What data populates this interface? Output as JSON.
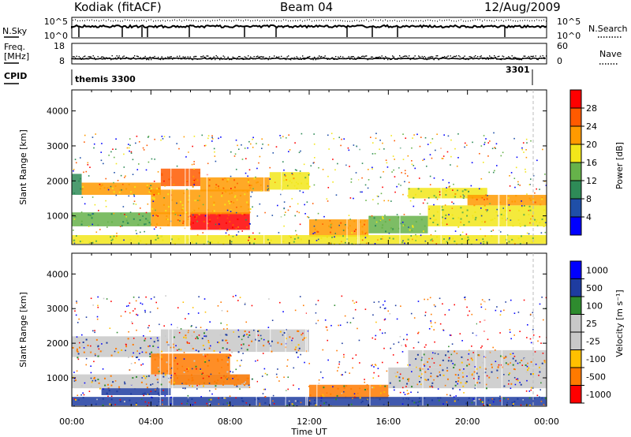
{
  "header": {
    "station": "Kodiak (fitACF)",
    "beam": "Beam 04",
    "date": "12/Aug/2009"
  },
  "strip_labels": {
    "nsky": "N.Sky",
    "nsky_ticks": [
      "10^5",
      "10^0"
    ],
    "nsearch": "N.Search",
    "nsearch_ticks": [
      "10^5",
      "10^0"
    ],
    "freq": "Freq.",
    "freq_unit": "[MHz]",
    "freq_ticks": [
      "18",
      "8"
    ],
    "nave": "Nave",
    "nave_ticks": [
      "60",
      "0"
    ],
    "cpid": "CPID",
    "cpid_left": "themis 3300",
    "cpid_right": "3301"
  },
  "x_axis": {
    "label": "Time UT",
    "ticks": [
      "00:00",
      "04:00",
      "08:00",
      "12:00",
      "16:00",
      "20:00",
      "00:00"
    ]
  },
  "colors": {
    "power": [
      "#0000ff",
      "#1f4fa8",
      "#2e8b57",
      "#66b24a",
      "#f2e61a",
      "#ff9a00",
      "#ff5a00",
      "#ff0000"
    ],
    "velocity": [
      "#ff0000",
      "#ff7a00",
      "#ffc000",
      "#c8c8c8",
      "#c8c8c8",
      "#2e8b2e",
      "#1e3ca0",
      "#0000ff"
    ],
    "ground_scatter": "#c0c0c0"
  },
  "chart_data": [
    {
      "type": "heatmap",
      "title": "",
      "xlabel": "",
      "ylabel": "Slant Range [km]",
      "xlim_hours": [
        0,
        24
      ],
      "ylim_km": [
        180,
        4600
      ],
      "y_ticks": [
        "1000",
        "2000",
        "3000",
        "4000"
      ],
      "colorbar": {
        "label": "Power [dB]",
        "ticks": [
          "4",
          "8",
          "12",
          "16",
          "20",
          "24",
          "28"
        ],
        "range": [
          0,
          30
        ]
      },
      "echo_bands": [
        {
          "t_start": 0.0,
          "t_end": 0.5,
          "r_low": 1600,
          "r_high": 2200,
          "value": 10
        },
        {
          "t_start": 0.5,
          "t_end": 4.5,
          "r_low": 1600,
          "r_high": 1950,
          "value": 20
        },
        {
          "t_start": 4.5,
          "t_end": 6.5,
          "r_low": 1850,
          "r_high": 2350,
          "value": 24
        },
        {
          "t_start": 6.5,
          "t_end": 10.0,
          "r_low": 1700,
          "r_high": 2100,
          "value": 22
        },
        {
          "t_start": 10.0,
          "t_end": 12.0,
          "r_low": 1750,
          "r_high": 2250,
          "value": 18
        },
        {
          "t_start": 0.0,
          "t_end": 4.0,
          "r_low": 700,
          "r_high": 1100,
          "value": 12
        },
        {
          "t_start": 4.0,
          "t_end": 6.0,
          "r_low": 700,
          "r_high": 1100,
          "value": 22
        },
        {
          "t_start": 6.0,
          "t_end": 9.0,
          "r_low": 600,
          "r_high": 1100,
          "value": 28
        },
        {
          "t_start": 4.0,
          "t_end": 9.0,
          "r_low": 1050,
          "r_high": 1750,
          "value": 20
        },
        {
          "t_start": 12.0,
          "t_end": 15.0,
          "r_low": 400,
          "r_high": 900,
          "value": 22
        },
        {
          "t_start": 15.0,
          "t_end": 18.0,
          "r_low": 500,
          "r_high": 1000,
          "value": 14
        },
        {
          "t_start": 17.0,
          "t_end": 21.0,
          "r_low": 1500,
          "r_high": 1800,
          "value": 18
        },
        {
          "t_start": 18.0,
          "t_end": 24.0,
          "r_low": 700,
          "r_high": 1300,
          "value": 16
        },
        {
          "t_start": 20.0,
          "t_end": 24.0,
          "r_low": 1300,
          "r_high": 1600,
          "value": 22
        },
        {
          "t_start": 0.0,
          "t_end": 24.0,
          "r_low": 200,
          "r_high": 450,
          "value": 16
        }
      ]
    },
    {
      "type": "heatmap",
      "title": "",
      "xlabel": "Time UT",
      "ylabel": "Slant Range [km]",
      "xlim_hours": [
        0,
        24
      ],
      "ylim_km": [
        180,
        4600
      ],
      "y_ticks": [
        "1000",
        "2000",
        "3000",
        "4000"
      ],
      "colorbar": {
        "label": "Velocity [m s⁻¹]",
        "ticks": [
          "1000",
          "500",
          "100",
          "25",
          "-25",
          "-100",
          "-500",
          "-1000"
        ],
        "range": [
          -1000,
          1000
        ]
      },
      "echo_bands": [
        {
          "t_start": 0.0,
          "t_end": 4.5,
          "r_low": 1600,
          "r_high": 2200,
          "value": 0
        },
        {
          "t_start": 4.5,
          "t_end": 12.0,
          "r_low": 1750,
          "r_high": 2400,
          "value": 0
        },
        {
          "t_start": 0.0,
          "t_end": 9.0,
          "r_low": 700,
          "r_high": 1100,
          "value": 0
        },
        {
          "t_start": 1.5,
          "t_end": 5.0,
          "r_low": 500,
          "r_high": 700,
          "value": 200
        },
        {
          "t_start": 5.0,
          "t_end": 9.0,
          "r_low": 800,
          "r_high": 1100,
          "value": -200
        },
        {
          "t_start": 4.0,
          "t_end": 8.0,
          "r_low": 1100,
          "r_high": 1700,
          "value": -100
        },
        {
          "t_start": 12.0,
          "t_end": 16.0,
          "r_low": 400,
          "r_high": 800,
          "value": -150
        },
        {
          "t_start": 16.0,
          "t_end": 24.0,
          "r_low": 700,
          "r_high": 1300,
          "value": 0
        },
        {
          "t_start": 17.0,
          "t_end": 24.0,
          "r_low": 1300,
          "r_high": 1800,
          "value": 0
        },
        {
          "t_start": 0.0,
          "t_end": 24.0,
          "r_low": 200,
          "r_high": 450,
          "value": 150
        }
      ]
    }
  ]
}
